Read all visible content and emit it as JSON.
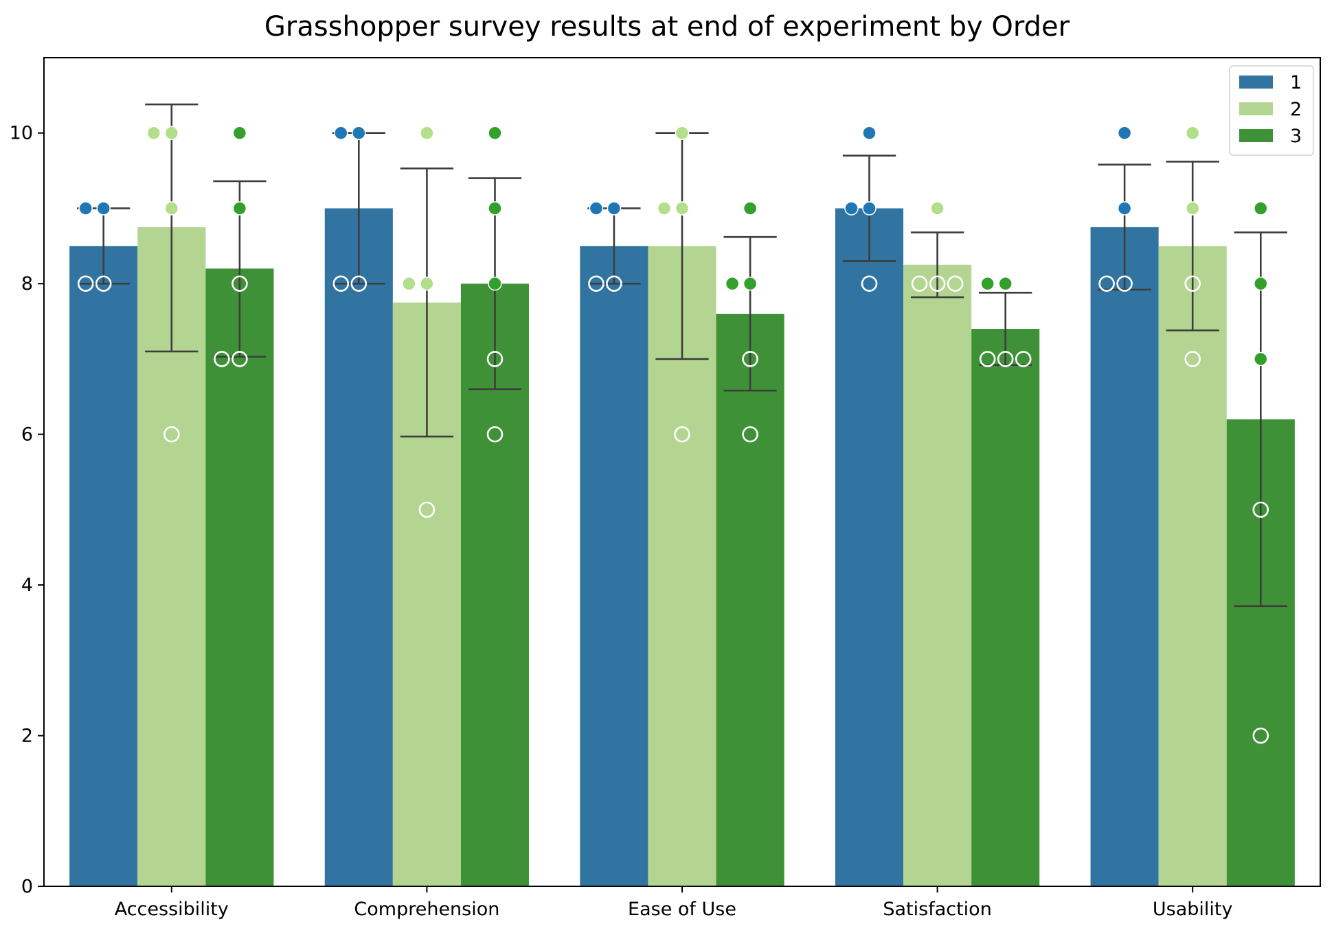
{
  "chart_data": {
    "type": "bar",
    "title": "Grasshopper survey results at end of experiment by Order",
    "xlabel": "",
    "ylabel": "",
    "ylim": [
      0,
      11
    ],
    "yticks": [
      0,
      2,
      4,
      6,
      8,
      10
    ],
    "grid": false,
    "legend_position": "top-right",
    "categories": [
      "Accessibility",
      "Comprehension",
      "Ease of Use",
      "Satisfaction",
      "Usability"
    ],
    "series": [
      {
        "name": "1",
        "bar_color": "#3274a1",
        "point_color": "#1f78b4",
        "values": [
          8.5,
          9.0,
          8.5,
          9.0,
          8.75
        ],
        "error_low": [
          8.0,
          8.0,
          8.0,
          8.3,
          7.92
        ],
        "error_high": [
          9.0,
          10.0,
          9.0,
          9.7,
          9.58
        ],
        "points": [
          [
            [
              9,
              true
            ],
            [
              9,
              true
            ],
            [
              8,
              false
            ],
            [
              8,
              false
            ]
          ],
          [
            [
              10,
              true
            ],
            [
              10,
              true
            ],
            [
              8,
              false
            ],
            [
              8,
              false
            ]
          ],
          [
            [
              9,
              true
            ],
            [
              9,
              true
            ],
            [
              8,
              false
            ],
            [
              8,
              false
            ]
          ],
          [
            [
              9,
              true
            ],
            [
              9,
              true
            ],
            [
              10,
              true
            ],
            [
              8,
              false
            ]
          ],
          [
            [
              10,
              true
            ],
            [
              9,
              true
            ],
            [
              8,
              false
            ],
            [
              8,
              false
            ]
          ]
        ]
      },
      {
        "name": "2",
        "bar_color": "#b4d592",
        "point_color": "#b2df8a",
        "values": [
          8.75,
          7.75,
          8.5,
          8.25,
          8.5
        ],
        "error_low": [
          7.1,
          5.97,
          7.0,
          7.82,
          7.38
        ],
        "error_high": [
          10.38,
          9.53,
          10.0,
          8.68,
          9.62
        ],
        "points": [
          [
            [
              10,
              true
            ],
            [
              10,
              true
            ],
            [
              9,
              true
            ],
            [
              6,
              false
            ]
          ],
          [
            [
              10,
              true
            ],
            [
              8,
              true
            ],
            [
              8,
              true
            ],
            [
              5,
              false
            ]
          ],
          [
            [
              10,
              true
            ],
            [
              9,
              true
            ],
            [
              9,
              true
            ],
            [
              6,
              false
            ]
          ],
          [
            [
              9,
              true
            ],
            [
              8,
              false
            ],
            [
              8,
              false
            ],
            [
              8,
              false
            ]
          ],
          [
            [
              10,
              true
            ],
            [
              9,
              true
            ],
            [
              8,
              false
            ],
            [
              7,
              false
            ]
          ]
        ]
      },
      {
        "name": "3",
        "bar_color": "#3f9137",
        "point_color": "#33a02c",
        "values": [
          8.2,
          8.0,
          7.6,
          7.4,
          6.2
        ],
        "error_low": [
          7.03,
          6.6,
          6.58,
          6.92,
          3.72
        ],
        "error_high": [
          9.36,
          9.4,
          8.62,
          7.88,
          8.68
        ],
        "points": [
          [
            [
              10,
              true
            ],
            [
              9,
              true
            ],
            [
              8,
              false
            ],
            [
              7,
              false
            ],
            [
              7,
              false
            ]
          ],
          [
            [
              10,
              true
            ],
            [
              9,
              true
            ],
            [
              8,
              true
            ],
            [
              7,
              false
            ],
            [
              6,
              false
            ]
          ],
          [
            [
              9,
              true
            ],
            [
              8,
              true
            ],
            [
              8,
              true
            ],
            [
              7,
              false
            ],
            [
              6,
              false
            ]
          ],
          [
            [
              8,
              true
            ],
            [
              8,
              true
            ],
            [
              7,
              false
            ],
            [
              7,
              false
            ],
            [
              7,
              false
            ]
          ],
          [
            [
              9,
              true
            ],
            [
              8,
              true
            ],
            [
              7,
              true
            ],
            [
              5,
              false
            ],
            [
              2,
              false
            ]
          ]
        ]
      }
    ]
  }
}
